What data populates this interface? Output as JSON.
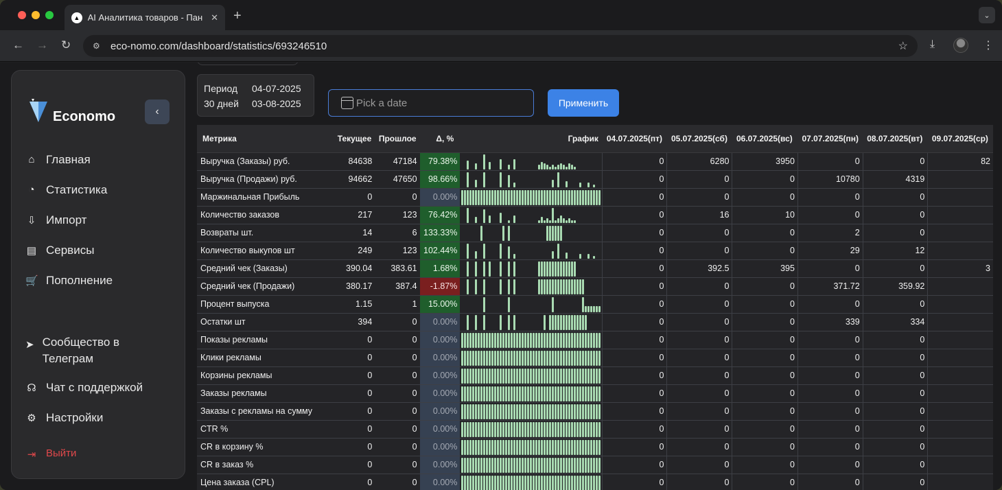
{
  "browser": {
    "tab_title": "AI Аналитика товаров - Пан",
    "tab_close": "✕",
    "new_tab": "+",
    "tab_menu": "⌄",
    "url": "eco-nomo.com/dashboard/statistics/693246510",
    "nav_back": "←",
    "nav_forward": "→",
    "nav_reload": "↻",
    "star": "☆",
    "download": "⤓",
    "menu": "⋮",
    "tune": "⚙",
    "favicon": "▲"
  },
  "sidebar": {
    "brand": "Economo",
    "collapse": "‹",
    "items": [
      {
        "label": "Главная",
        "icon": "⌂"
      },
      {
        "label": "Статистика",
        "icon": "◔"
      },
      {
        "label": "Импорт",
        "icon": "⇩"
      },
      {
        "label": "Сервисы",
        "icon": "▤"
      },
      {
        "label": "Пополнение",
        "icon": "🛒"
      }
    ],
    "bottom": [
      {
        "label": "Сообщество в Телеграм",
        "icon": "➤"
      },
      {
        "label": "Чат с поддержкой",
        "icon": "☊"
      },
      {
        "label": "Настройки",
        "icon": "⚙"
      }
    ],
    "logout": {
      "label": "Выйти",
      "icon": "⇥"
    }
  },
  "period": {
    "label": "Период",
    "days": "30 дней",
    "from": "04-07-2025",
    "to": "03-08-2025"
  },
  "datepicker": {
    "placeholder": "Pick a date"
  },
  "apply_label": "Применить",
  "table": {
    "headers": {
      "metric": "Метрика",
      "current": "Текущее",
      "previous": "Прошлое",
      "delta": "Δ, %",
      "chart": "График",
      "days": [
        "04.07.2025(пт)",
        "05.07.2025(сб)",
        "06.07.2025(вс)",
        "07.07.2025(пн)",
        "08.07.2025(вт)",
        "09.07.2025(ср)"
      ]
    },
    "rows": [
      {
        "name": "Выручка (Заказы) руб.",
        "cur": "84638",
        "prev": "47184",
        "delta": "79.38%",
        "kind": "pos",
        "days": [
          "0",
          "6280",
          "3950",
          "0",
          "0",
          "82"
        ],
        "spark": [
          0,
          0,
          6,
          0,
          0,
          4,
          0,
          0,
          10,
          0,
          5,
          0,
          0,
          0,
          7,
          0,
          0,
          3,
          0,
          7,
          0,
          0,
          0,
          0,
          0,
          0,
          0,
          0,
          3,
          5,
          4,
          3,
          2,
          3,
          2,
          3,
          4,
          3,
          2,
          4,
          3,
          2
        ]
      },
      {
        "name": "Выручка (Продажи) руб.",
        "cur": "94662",
        "prev": "47650",
        "delta": "98.66%",
        "kind": "pos",
        "days": [
          "0",
          "0",
          "0",
          "10780",
          "4319",
          ""
        ],
        "spark": [
          0,
          0,
          10,
          0,
          0,
          5,
          0,
          0,
          10,
          0,
          0,
          0,
          0,
          0,
          10,
          0,
          0,
          8,
          0,
          3,
          0,
          0,
          0,
          0,
          0,
          0,
          0,
          0,
          0,
          0,
          0,
          0,
          0,
          5,
          0,
          10,
          0,
          0,
          4,
          0,
          0,
          0,
          0,
          3,
          0,
          0,
          3,
          0,
          2
        ]
      },
      {
        "name": "Маржинальная Прибыль",
        "cur": "0",
        "prev": "0",
        "delta": "0.00%",
        "kind": "zero",
        "days": [
          "0",
          "0",
          "0",
          "0",
          "0",
          ""
        ],
        "spark": []
      },
      {
        "name": "Количество заказов",
        "cur": "217",
        "prev": "123",
        "delta": "76.42%",
        "kind": "pos",
        "days": [
          "0",
          "16",
          "10",
          "0",
          "0",
          ""
        ],
        "spark": [
          0,
          0,
          10,
          0,
          0,
          4,
          0,
          0,
          9,
          0,
          5,
          0,
          0,
          0,
          7,
          0,
          0,
          2,
          0,
          5,
          0,
          0,
          0,
          0,
          0,
          0,
          0,
          0,
          2,
          4,
          2,
          3,
          2,
          10,
          2,
          3,
          5,
          3,
          2,
          3,
          2,
          2
        ]
      },
      {
        "name": "Возвраты шт.",
        "cur": "14",
        "prev": "6",
        "delta": "133.33%",
        "kind": "pos",
        "days": [
          "0",
          "0",
          "0",
          "2",
          "0",
          ""
        ],
        "spark": [
          0,
          0,
          0,
          0,
          0,
          0,
          0,
          10,
          0,
          0,
          0,
          0,
          0,
          0,
          0,
          10,
          0,
          10,
          0,
          0,
          0,
          0,
          0,
          0,
          0,
          0,
          0,
          0,
          0,
          0,
          0,
          10,
          10,
          10,
          10,
          10,
          10
        ]
      },
      {
        "name": "Количество выкупов шт",
        "cur": "249",
        "prev": "123",
        "delta": "102.44%",
        "kind": "pos",
        "days": [
          "0",
          "0",
          "0",
          "29",
          "12",
          ""
        ],
        "spark": [
          0,
          0,
          10,
          0,
          0,
          5,
          0,
          0,
          10,
          0,
          0,
          0,
          0,
          0,
          10,
          0,
          0,
          8,
          0,
          3,
          0,
          0,
          0,
          0,
          0,
          0,
          0,
          0,
          0,
          0,
          0,
          0,
          0,
          5,
          0,
          10,
          0,
          0,
          4,
          0,
          0,
          0,
          0,
          3,
          0,
          0,
          3,
          0,
          2
        ]
      },
      {
        "name": "Средний чек (Заказы)",
        "cur": "390.04",
        "prev": "383.61",
        "delta": "1.68%",
        "kind": "pos",
        "days": [
          "0",
          "392.5",
          "395",
          "0",
          "0",
          "3"
        ],
        "spark": [
          0,
          0,
          10,
          0,
          0,
          10,
          0,
          0,
          10,
          0,
          10,
          0,
          0,
          0,
          10,
          0,
          0,
          10,
          0,
          10,
          0,
          0,
          0,
          0,
          0,
          0,
          0,
          0,
          10,
          10,
          10,
          10,
          10,
          10,
          10,
          10,
          10,
          10,
          10,
          10,
          10,
          10
        ]
      },
      {
        "name": "Средний чек (Продажи)",
        "cur": "380.17",
        "prev": "387.4",
        "delta": "-1.87%",
        "kind": "neg",
        "days": [
          "0",
          "0",
          "0",
          "371.72",
          "359.92",
          ""
        ],
        "spark": [
          0,
          0,
          10,
          0,
          0,
          10,
          0,
          0,
          10,
          0,
          0,
          0,
          0,
          0,
          10,
          0,
          0,
          10,
          0,
          10,
          0,
          0,
          0,
          0,
          0,
          0,
          0,
          0,
          10,
          10,
          10,
          10,
          10,
          10,
          10,
          10,
          10,
          10,
          10,
          10,
          10,
          10,
          10,
          10,
          10
        ]
      },
      {
        "name": "Процент выпуска",
        "cur": "1.15",
        "prev": "1",
        "delta": "15.00%",
        "kind": "pos",
        "days": [
          "0",
          "0",
          "0",
          "0",
          "0",
          ""
        ],
        "spark": [
          0,
          0,
          0,
          0,
          0,
          0,
          0,
          0,
          10,
          0,
          0,
          0,
          0,
          0,
          0,
          0,
          0,
          10,
          0,
          0,
          0,
          0,
          0,
          0,
          0,
          0,
          0,
          0,
          0,
          0,
          0,
          0,
          0,
          10,
          0,
          0,
          0,
          0,
          0,
          0,
          0,
          0,
          0,
          0,
          10,
          4,
          4,
          4,
          4,
          4,
          4,
          4,
          4,
          4,
          4,
          4,
          4
        ]
      },
      {
        "name": "Остатки шт",
        "cur": "394",
        "prev": "0",
        "delta": "0.00%",
        "kind": "zero",
        "days": [
          "0",
          "0",
          "0",
          "339",
          "334",
          ""
        ],
        "spark": [
          0,
          0,
          10,
          0,
          0,
          10,
          0,
          0,
          10,
          0,
          0,
          0,
          0,
          0,
          10,
          0,
          0,
          10,
          0,
          10,
          0,
          0,
          0,
          0,
          0,
          0,
          0,
          0,
          0,
          0,
          10,
          0,
          10,
          10,
          10,
          10,
          10,
          10,
          10,
          10,
          10,
          10,
          10,
          10,
          10,
          10
        ]
      },
      {
        "name": "Показы рекламы",
        "cur": "0",
        "prev": "0",
        "delta": "0.00%",
        "kind": "zero",
        "days": [
          "0",
          "0",
          "0",
          "0",
          "0",
          ""
        ],
        "spark": []
      },
      {
        "name": "Клики рекламы",
        "cur": "0",
        "prev": "0",
        "delta": "0.00%",
        "kind": "zero",
        "days": [
          "0",
          "0",
          "0",
          "0",
          "0",
          ""
        ],
        "spark": []
      },
      {
        "name": "Корзины рекламы",
        "cur": "0",
        "prev": "0",
        "delta": "0.00%",
        "kind": "zero",
        "days": [
          "0",
          "0",
          "0",
          "0",
          "0",
          ""
        ],
        "spark": []
      },
      {
        "name": "Заказы рекламы",
        "cur": "0",
        "prev": "0",
        "delta": "0.00%",
        "kind": "zero",
        "days": [
          "0",
          "0",
          "0",
          "0",
          "0",
          ""
        ],
        "spark": []
      },
      {
        "name": "Заказы с рекламы на сумму",
        "cur": "0",
        "prev": "0",
        "delta": "0.00%",
        "kind": "zero",
        "days": [
          "0",
          "0",
          "0",
          "0",
          "0",
          ""
        ],
        "spark": []
      },
      {
        "name": "CTR %",
        "cur": "0",
        "prev": "0",
        "delta": "0.00%",
        "kind": "zero",
        "days": [
          "0",
          "0",
          "0",
          "0",
          "0",
          ""
        ],
        "spark": []
      },
      {
        "name": "CR в корзину %",
        "cur": "0",
        "prev": "0",
        "delta": "0.00%",
        "kind": "zero",
        "days": [
          "0",
          "0",
          "0",
          "0",
          "0",
          ""
        ],
        "spark": []
      },
      {
        "name": "CR в заказ %",
        "cur": "0",
        "prev": "0",
        "delta": "0.00%",
        "kind": "zero",
        "days": [
          "0",
          "0",
          "0",
          "0",
          "0",
          ""
        ],
        "spark": []
      },
      {
        "name": "Цена заказа (CPL)",
        "cur": "0",
        "prev": "0",
        "delta": "0.00%",
        "kind": "zero",
        "days": [
          "0",
          "0",
          "0",
          "0",
          "0",
          ""
        ],
        "spark": []
      }
    ]
  }
}
